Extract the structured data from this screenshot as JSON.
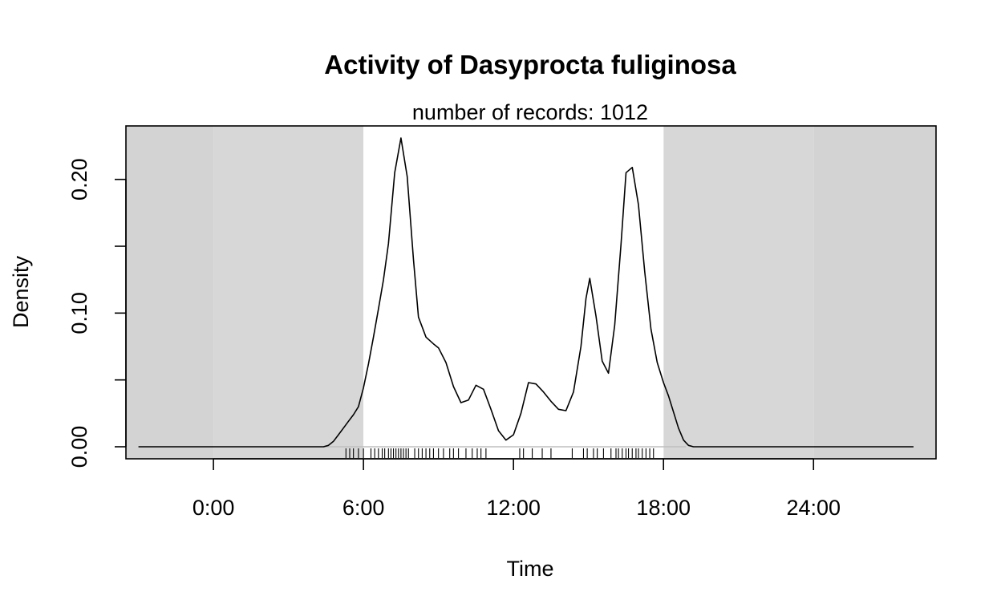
{
  "chart_data": {
    "type": "area",
    "title": "Activity of Dasyprocta fuliginosa",
    "subtitle": "number of records: 1012",
    "xlabel": "Time",
    "ylabel": "Density",
    "xlim": [
      -3.5,
      28.9
    ],
    "ylim": [
      -0.009,
      0.24
    ],
    "x_ticks": [
      {
        "value": 0,
        "label": "0:00"
      },
      {
        "value": 6,
        "label": "6:00"
      },
      {
        "value": 12,
        "label": "12:00"
      },
      {
        "value": 18,
        "label": "18:00"
      },
      {
        "value": 24,
        "label": "24:00"
      }
    ],
    "y_ticks": [
      {
        "value": 0.0,
        "label": "0.00"
      },
      {
        "value": 0.05,
        "label": ""
      },
      {
        "value": 0.1,
        "label": "0.10"
      },
      {
        "value": 0.15,
        "label": ""
      },
      {
        "value": 0.2,
        "label": "0.20"
      }
    ],
    "shading": {
      "night_color": "#d3d3d3",
      "twilight_color": "#d7d7d7",
      "day_color": "#ffffff",
      "outer_night": [
        [
          -3.5,
          0
        ],
        [
          24,
          28.9
        ]
      ],
      "night": [
        [
          0,
          6
        ],
        [
          18,
          24
        ]
      ],
      "day": [
        6,
        18
      ]
    },
    "series": [
      {
        "x": [
          -3,
          4.4,
          4.6,
          4.8,
          5.0,
          5.2,
          5.4,
          5.6,
          5.8,
          6.0,
          6.2,
          6.4,
          6.6,
          6.8,
          7.0,
          7.25,
          7.5,
          7.75,
          8.0,
          8.2,
          8.5,
          8.8,
          9.0,
          9.3,
          9.6,
          9.9,
          10.2,
          10.5,
          10.8,
          11.1,
          11.4,
          11.7,
          12.0,
          12.3,
          12.6,
          12.9,
          13.2,
          13.5,
          13.8,
          14.1,
          14.4,
          14.7,
          14.9,
          15.05,
          15.3,
          15.55,
          15.8,
          16.05,
          16.3,
          16.5,
          16.75,
          17.0,
          17.25,
          17.5,
          17.75,
          18.0,
          18.2,
          18.4,
          18.6,
          18.8,
          19.0,
          19.2,
          28.0
        ],
        "y": [
          0,
          0,
          0.001,
          0.004,
          0.009,
          0.014,
          0.019,
          0.024,
          0.03,
          0.044,
          0.062,
          0.082,
          0.103,
          0.125,
          0.152,
          0.205,
          0.231,
          0.202,
          0.14,
          0.097,
          0.082,
          0.077,
          0.074,
          0.063,
          0.045,
          0.033,
          0.035,
          0.046,
          0.043,
          0.028,
          0.012,
          0.005,
          0.009,
          0.025,
          0.048,
          0.047,
          0.041,
          0.034,
          0.028,
          0.027,
          0.041,
          0.075,
          0.111,
          0.126,
          0.098,
          0.064,
          0.055,
          0.091,
          0.151,
          0.205,
          0.209,
          0.181,
          0.131,
          0.088,
          0.063,
          0.048,
          0.038,
          0.026,
          0.014,
          0.005,
          0.001,
          0,
          0
        ]
      }
    ],
    "rug_x": [
      5.3,
      5.45,
      5.6,
      5.8,
      6.0,
      6.3,
      6.45,
      6.6,
      6.75,
      6.85,
      7.0,
      7.1,
      7.2,
      7.3,
      7.4,
      7.5,
      7.6,
      7.7,
      7.8,
      8.05,
      8.2,
      8.35,
      8.5,
      8.65,
      8.8,
      9.0,
      9.2,
      9.45,
      9.6,
      9.8,
      10.1,
      10.35,
      10.55,
      10.7,
      10.9,
      12.25,
      12.4,
      12.75,
      13.15,
      13.5,
      14.35,
      14.8,
      14.95,
      15.2,
      15.35,
      15.6,
      15.9,
      16.1,
      16.2,
      16.35,
      16.5,
      16.6,
      16.75,
      16.9,
      17.0,
      17.15,
      17.3,
      17.45,
      17.6
    ]
  }
}
